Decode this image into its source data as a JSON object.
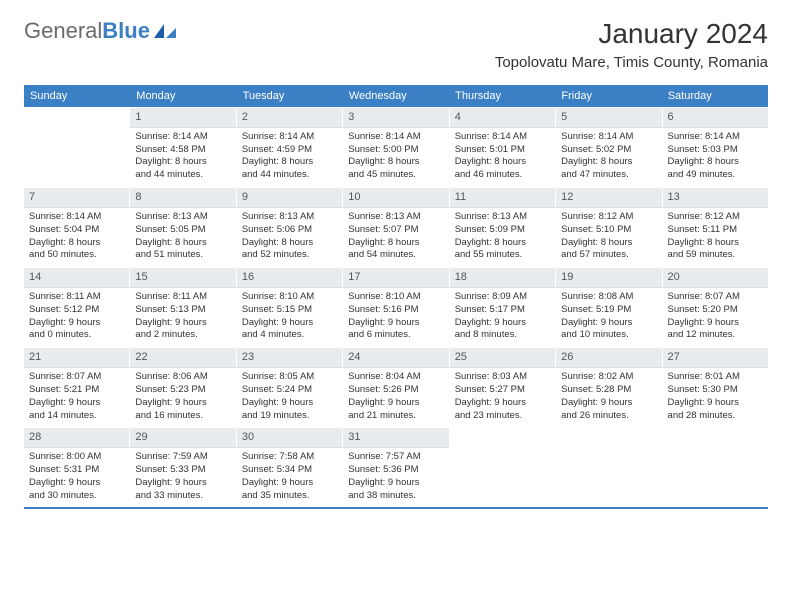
{
  "logo": {
    "text_general": "General",
    "text_blue": "Blue"
  },
  "title": "January 2024",
  "location": "Topolovatu Mare, Timis County, Romania",
  "colors": {
    "accent": "#3b7fc4",
    "header_text": "#ffffff",
    "daynum_bg": "#e9ecef",
    "body_text": "#333333",
    "logo_gray": "#6b6b6b"
  },
  "days_of_week": [
    "Sunday",
    "Monday",
    "Tuesday",
    "Wednesday",
    "Thursday",
    "Friday",
    "Saturday"
  ],
  "weeks": [
    [
      {
        "num": "",
        "lines": []
      },
      {
        "num": "1",
        "lines": [
          "Sunrise: 8:14 AM",
          "Sunset: 4:58 PM",
          "Daylight: 8 hours",
          "and 44 minutes."
        ]
      },
      {
        "num": "2",
        "lines": [
          "Sunrise: 8:14 AM",
          "Sunset: 4:59 PM",
          "Daylight: 8 hours",
          "and 44 minutes."
        ]
      },
      {
        "num": "3",
        "lines": [
          "Sunrise: 8:14 AM",
          "Sunset: 5:00 PM",
          "Daylight: 8 hours",
          "and 45 minutes."
        ]
      },
      {
        "num": "4",
        "lines": [
          "Sunrise: 8:14 AM",
          "Sunset: 5:01 PM",
          "Daylight: 8 hours",
          "and 46 minutes."
        ]
      },
      {
        "num": "5",
        "lines": [
          "Sunrise: 8:14 AM",
          "Sunset: 5:02 PM",
          "Daylight: 8 hours",
          "and 47 minutes."
        ]
      },
      {
        "num": "6",
        "lines": [
          "Sunrise: 8:14 AM",
          "Sunset: 5:03 PM",
          "Daylight: 8 hours",
          "and 49 minutes."
        ]
      }
    ],
    [
      {
        "num": "7",
        "lines": [
          "Sunrise: 8:14 AM",
          "Sunset: 5:04 PM",
          "Daylight: 8 hours",
          "and 50 minutes."
        ]
      },
      {
        "num": "8",
        "lines": [
          "Sunrise: 8:13 AM",
          "Sunset: 5:05 PM",
          "Daylight: 8 hours",
          "and 51 minutes."
        ]
      },
      {
        "num": "9",
        "lines": [
          "Sunrise: 8:13 AM",
          "Sunset: 5:06 PM",
          "Daylight: 8 hours",
          "and 52 minutes."
        ]
      },
      {
        "num": "10",
        "lines": [
          "Sunrise: 8:13 AM",
          "Sunset: 5:07 PM",
          "Daylight: 8 hours",
          "and 54 minutes."
        ]
      },
      {
        "num": "11",
        "lines": [
          "Sunrise: 8:13 AM",
          "Sunset: 5:09 PM",
          "Daylight: 8 hours",
          "and 55 minutes."
        ]
      },
      {
        "num": "12",
        "lines": [
          "Sunrise: 8:12 AM",
          "Sunset: 5:10 PM",
          "Daylight: 8 hours",
          "and 57 minutes."
        ]
      },
      {
        "num": "13",
        "lines": [
          "Sunrise: 8:12 AM",
          "Sunset: 5:11 PM",
          "Daylight: 8 hours",
          "and 59 minutes."
        ]
      }
    ],
    [
      {
        "num": "14",
        "lines": [
          "Sunrise: 8:11 AM",
          "Sunset: 5:12 PM",
          "Daylight: 9 hours",
          "and 0 minutes."
        ]
      },
      {
        "num": "15",
        "lines": [
          "Sunrise: 8:11 AM",
          "Sunset: 5:13 PM",
          "Daylight: 9 hours",
          "and 2 minutes."
        ]
      },
      {
        "num": "16",
        "lines": [
          "Sunrise: 8:10 AM",
          "Sunset: 5:15 PM",
          "Daylight: 9 hours",
          "and 4 minutes."
        ]
      },
      {
        "num": "17",
        "lines": [
          "Sunrise: 8:10 AM",
          "Sunset: 5:16 PM",
          "Daylight: 9 hours",
          "and 6 minutes."
        ]
      },
      {
        "num": "18",
        "lines": [
          "Sunrise: 8:09 AM",
          "Sunset: 5:17 PM",
          "Daylight: 9 hours",
          "and 8 minutes."
        ]
      },
      {
        "num": "19",
        "lines": [
          "Sunrise: 8:08 AM",
          "Sunset: 5:19 PM",
          "Daylight: 9 hours",
          "and 10 minutes."
        ]
      },
      {
        "num": "20",
        "lines": [
          "Sunrise: 8:07 AM",
          "Sunset: 5:20 PM",
          "Daylight: 9 hours",
          "and 12 minutes."
        ]
      }
    ],
    [
      {
        "num": "21",
        "lines": [
          "Sunrise: 8:07 AM",
          "Sunset: 5:21 PM",
          "Daylight: 9 hours",
          "and 14 minutes."
        ]
      },
      {
        "num": "22",
        "lines": [
          "Sunrise: 8:06 AM",
          "Sunset: 5:23 PM",
          "Daylight: 9 hours",
          "and 16 minutes."
        ]
      },
      {
        "num": "23",
        "lines": [
          "Sunrise: 8:05 AM",
          "Sunset: 5:24 PM",
          "Daylight: 9 hours",
          "and 19 minutes."
        ]
      },
      {
        "num": "24",
        "lines": [
          "Sunrise: 8:04 AM",
          "Sunset: 5:26 PM",
          "Daylight: 9 hours",
          "and 21 minutes."
        ]
      },
      {
        "num": "25",
        "lines": [
          "Sunrise: 8:03 AM",
          "Sunset: 5:27 PM",
          "Daylight: 9 hours",
          "and 23 minutes."
        ]
      },
      {
        "num": "26",
        "lines": [
          "Sunrise: 8:02 AM",
          "Sunset: 5:28 PM",
          "Daylight: 9 hours",
          "and 26 minutes."
        ]
      },
      {
        "num": "27",
        "lines": [
          "Sunrise: 8:01 AM",
          "Sunset: 5:30 PM",
          "Daylight: 9 hours",
          "and 28 minutes."
        ]
      }
    ],
    [
      {
        "num": "28",
        "lines": [
          "Sunrise: 8:00 AM",
          "Sunset: 5:31 PM",
          "Daylight: 9 hours",
          "and 30 minutes."
        ]
      },
      {
        "num": "29",
        "lines": [
          "Sunrise: 7:59 AM",
          "Sunset: 5:33 PM",
          "Daylight: 9 hours",
          "and 33 minutes."
        ]
      },
      {
        "num": "30",
        "lines": [
          "Sunrise: 7:58 AM",
          "Sunset: 5:34 PM",
          "Daylight: 9 hours",
          "and 35 minutes."
        ]
      },
      {
        "num": "31",
        "lines": [
          "Sunrise: 7:57 AM",
          "Sunset: 5:36 PM",
          "Daylight: 9 hours",
          "and 38 minutes."
        ]
      },
      {
        "num": "",
        "lines": []
      },
      {
        "num": "",
        "lines": []
      },
      {
        "num": "",
        "lines": []
      }
    ]
  ]
}
